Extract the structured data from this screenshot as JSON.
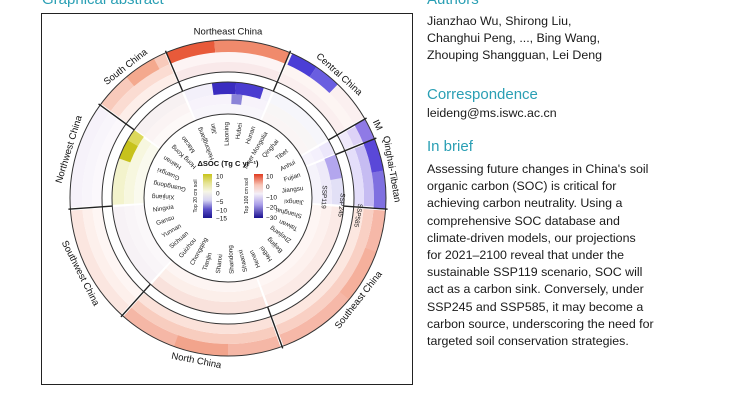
{
  "graphical_abstract": {
    "title": "Graphical abstract",
    "figure": {
      "regions": [
        "Northeast China",
        "Central China",
        "IM",
        "Qinghai-Tibetan",
        "Southeast China",
        "North China",
        "Southwest China",
        "Northwest China",
        "South China"
      ],
      "provinces": [
        "Heilongjiang",
        "Jilin",
        "Liaoning",
        "Hubei",
        "Hunan",
        "Inner Mongolia",
        "Qinghai",
        "Tibet",
        "Anhui",
        "Fujian",
        "Jiangsu",
        "Jiangxi",
        "Shanghai",
        "Taiwan",
        "Zhejiang",
        "Beijing",
        "HeBei",
        "Henan",
        "Shaanxi",
        "Shandong",
        "Shanxi",
        "Tianjin",
        "Chongqing",
        "Guizhou",
        "Sichuan",
        "Yunnan",
        "Gansu",
        "Ningxia",
        "Xinjiang",
        "Guangdong",
        "Guangxi",
        "Hainan",
        "Hong Kong",
        "Macao"
      ],
      "scenarios": [
        "SSP119",
        "SSP245",
        "SSP585"
      ],
      "legend_title": "ΔSOC (Tg C yr⁻¹)",
      "legend_20": {
        "label": "Top 20 cm soil",
        "ticks": [
          "10",
          "5",
          "0",
          "−5",
          "−10",
          "−15"
        ]
      },
      "legend_100": {
        "label": "Top 100 cm soil",
        "ticks": [
          "10",
          "0",
          "−10",
          "−20",
          "−30"
        ]
      }
    }
  },
  "authors": {
    "title": "Authors",
    "names": [
      "Jianzhao Wu, Shirong Liu,",
      "Changhui Peng, ..., Bing Wang,",
      "Zhouping Shangguan, Lei Deng"
    ]
  },
  "correspondence": {
    "title": "Correspondence",
    "email": "leideng@ms.iswc.ac.cn"
  },
  "in_brief": {
    "title": "In brief",
    "lines": [
      "Assessing future changes in China's soil",
      "organic carbon (SOC) is critical for",
      "achieving carbon neutrality. Using a",
      "comprehensive SOC database and",
      "climate-driven models, our projections",
      "for 2021–2100 reveal that under the",
      "sustainable SSP119 scenario, SOC will",
      "act as a carbon sink. Conversely, under",
      "SSP245 and SSP585, it may become a",
      "carbon source, underscoring the need for",
      "targeted soil conservation strategies."
    ]
  },
  "colors": {
    "heading": "#2a9fb4",
    "source_red": "#e03a1e",
    "sink_blue": "#2a1fb0",
    "olive": "#c8c41a",
    "purple": "#8a6ad8"
  }
}
